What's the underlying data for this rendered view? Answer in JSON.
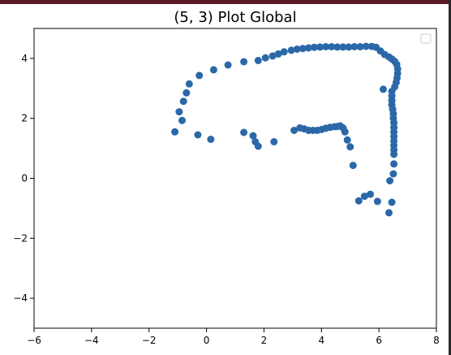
{
  "window": {
    "accent": "#5a1a24"
  },
  "chart_data": {
    "type": "scatter",
    "title": "(5, 3) Plot Global",
    "xlabel": "",
    "ylabel": "",
    "xlim": [
      -6,
      8
    ],
    "ylim": [
      -5,
      5
    ],
    "x_ticks": [
      -6,
      -4,
      -2,
      0,
      2,
      4,
      6,
      8
    ],
    "y_ticks": [
      -4,
      -2,
      0,
      2,
      4
    ],
    "x_tick_labels": [
      "−6",
      "−4",
      "−2",
      "0",
      "2",
      "4",
      "6",
      "8"
    ],
    "y_tick_labels": [
      "−4",
      "−2",
      "0",
      "2",
      "4"
    ],
    "grid": false,
    "legend": {
      "position": "top-right",
      "entries": []
    },
    "marker_color": "#2b68a8",
    "series": [
      {
        "points": [
          [
            -1.1,
            1.55
          ],
          [
            -0.85,
            1.93
          ],
          [
            -0.95,
            2.22
          ],
          [
            -0.8,
            2.57
          ],
          [
            -0.7,
            2.85
          ],
          [
            -0.6,
            3.15
          ],
          [
            -0.25,
            3.43
          ],
          [
            0.25,
            3.62
          ],
          [
            0.75,
            3.78
          ],
          [
            1.3,
            3.89
          ],
          [
            1.8,
            3.93
          ],
          [
            2.05,
            4.02
          ],
          [
            2.3,
            4.08
          ],
          [
            2.5,
            4.15
          ],
          [
            2.7,
            4.22
          ],
          [
            2.95,
            4.27
          ],
          [
            3.15,
            4.31
          ],
          [
            3.35,
            4.33
          ],
          [
            3.55,
            4.35
          ],
          [
            3.75,
            4.37
          ],
          [
            3.95,
            4.38
          ],
          [
            4.15,
            4.39
          ],
          [
            4.35,
            4.39
          ],
          [
            4.55,
            4.38
          ],
          [
            4.75,
            4.38
          ],
          [
            4.95,
            4.38
          ],
          [
            5.15,
            4.39
          ],
          [
            5.35,
            4.39
          ],
          [
            5.55,
            4.4
          ],
          [
            5.75,
            4.4
          ],
          [
            5.9,
            4.37
          ],
          [
            6.05,
            4.25
          ],
          [
            6.2,
            4.13
          ],
          [
            6.35,
            4.05
          ],
          [
            6.45,
            3.98
          ],
          [
            6.55,
            3.9
          ],
          [
            6.62,
            3.8
          ],
          [
            6.65,
            3.65
          ],
          [
            6.65,
            3.5
          ],
          [
            6.63,
            3.35
          ],
          [
            6.6,
            3.2
          ],
          [
            6.55,
            3.05
          ],
          [
            6.45,
            2.9
          ],
          [
            6.45,
            2.75
          ],
          [
            6.45,
            2.6
          ],
          [
            6.45,
            2.45
          ],
          [
            6.48,
            2.3
          ],
          [
            6.5,
            2.15
          ],
          [
            6.5,
            2.0
          ],
          [
            6.52,
            1.85
          ],
          [
            6.52,
            1.7
          ],
          [
            6.52,
            1.55
          ],
          [
            6.52,
            1.4
          ],
          [
            6.52,
            1.25
          ],
          [
            6.52,
            1.1
          ],
          [
            6.52,
            0.95
          ],
          [
            6.52,
            0.8
          ],
          [
            6.52,
            0.48
          ],
          [
            6.5,
            0.15
          ],
          [
            6.38,
            -0.08
          ],
          [
            6.45,
            -0.8
          ],
          [
            6.35,
            -1.15
          ],
          [
            6.15,
            2.97
          ],
          [
            5.95,
            -0.77
          ],
          [
            5.7,
            -0.53
          ],
          [
            5.5,
            -0.6
          ],
          [
            5.3,
            -0.75
          ],
          [
            5.1,
            0.43
          ],
          [
            5.0,
            1.05
          ],
          [
            4.9,
            1.28
          ],
          [
            4.82,
            1.55
          ],
          [
            4.75,
            1.68
          ],
          [
            4.65,
            1.75
          ],
          [
            4.55,
            1.73
          ],
          [
            4.45,
            1.72
          ],
          [
            4.3,
            1.7
          ],
          [
            4.15,
            1.67
          ],
          [
            4.0,
            1.63
          ],
          [
            3.85,
            1.6
          ],
          [
            3.7,
            1.6
          ],
          [
            3.55,
            1.6
          ],
          [
            3.4,
            1.65
          ],
          [
            3.25,
            1.68
          ],
          [
            3.05,
            1.6
          ],
          [
            2.35,
            1.22
          ],
          [
            1.8,
            1.07
          ],
          [
            1.7,
            1.22
          ],
          [
            1.62,
            1.42
          ],
          [
            1.3,
            1.53
          ],
          [
            0.15,
            1.3
          ],
          [
            -0.3,
            1.45
          ]
        ]
      }
    ]
  }
}
